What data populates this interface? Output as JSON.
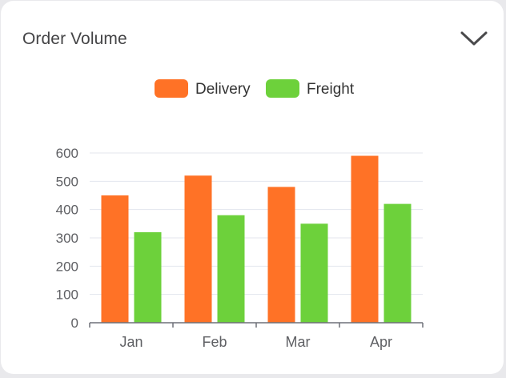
{
  "card": {
    "title": "Order Volume",
    "collapse_icon": "chevron-down-icon"
  },
  "colors": {
    "delivery": "#ff7226",
    "freight": "#6dd13b",
    "axis": "#6e7079",
    "grid": "#e3e6ee",
    "tick_label": "#5f6064"
  },
  "chart_data": {
    "type": "bar",
    "title": "",
    "xlabel": "",
    "ylabel": "",
    "categories": [
      "Jan",
      "Feb",
      "Mar",
      "Apr"
    ],
    "series": [
      {
        "name": "Delivery",
        "values": [
          450,
          520,
          480,
          590
        ]
      },
      {
        "name": "Freight",
        "values": [
          320,
          380,
          350,
          420
        ]
      }
    ],
    "ylim": [
      0,
      600
    ],
    "yticks": [
      0,
      100,
      200,
      300,
      400,
      500,
      600
    ],
    "grid": true,
    "legend": "top-center"
  }
}
